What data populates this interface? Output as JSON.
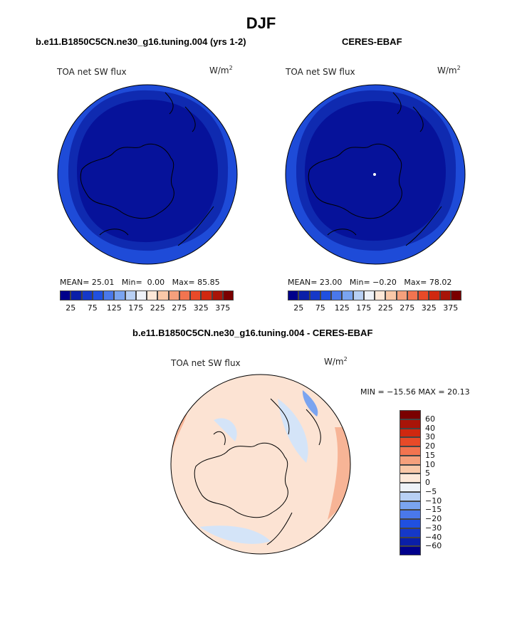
{
  "page": {
    "title": "DJF"
  },
  "panels": [
    {
      "id": "model",
      "header": "b.e11.B1850C5CN.ne30_g16.tuning.004 (yrs 1-2)",
      "variable": "TOA net SW flux",
      "units": "W/m",
      "units_sup": "2",
      "stats": {
        "mean_label": "MEAN=",
        "mean": "25.01",
        "min_label": "Min=",
        "min": "0.00",
        "max_label": "Max=",
        "max": "85.85"
      }
    },
    {
      "id": "obs",
      "header": "CERES-EBAF",
      "variable": "TOA net SW flux",
      "units": "W/m",
      "units_sup": "2",
      "stats": {
        "mean_label": "MEAN=",
        "mean": "23.00",
        "min_label": "Min=",
        "min": "−0.20",
        "max_label": "Max=",
        "max": "78.02"
      }
    },
    {
      "id": "diff",
      "header": "b.e11.B1850C5CN.ne30_g16.tuning.004 - CERES-EBAF",
      "variable": "TOA net SW flux",
      "units": "W/m",
      "units_sup": "2",
      "stats": {
        "text": "MIN = −15.56 MAX =  20.13"
      }
    }
  ],
  "colorbars": {
    "absolute": {
      "colors": [
        "#00008b",
        "#0a1fa8",
        "#1538c8",
        "#2050e0",
        "#4a78ea",
        "#7aa4f0",
        "#b8d0f4",
        "#eef2f8",
        "#fde8d8",
        "#f9c8a8",
        "#f5a07c",
        "#f27450",
        "#e84a28",
        "#d02810",
        "#a81408",
        "#7a0000"
      ],
      "labels": [
        "25",
        "75",
        "125",
        "175",
        "225",
        "275",
        "325",
        "375"
      ]
    },
    "difference": {
      "colors": [
        "#00008b",
        "#0a1fa8",
        "#1538c8",
        "#2050e0",
        "#4a78ea",
        "#7aa4f0",
        "#b8d0f4",
        "#eef2f8",
        "#fde8d8",
        "#f9c8a8",
        "#f5a07c",
        "#f27450",
        "#e84a28",
        "#d02810",
        "#a81408",
        "#7a0000"
      ],
      "labels": [
        "60",
        "40",
        "30",
        "20",
        "15",
        "10",
        "5",
        "0",
        "−5",
        "−10",
        "−15",
        "−20",
        "−30",
        "−40",
        "−60"
      ]
    }
  },
  "map_fills": {
    "abs_outer": "#1e4bd8",
    "abs_mid": "#0f2ab0",
    "abs_inner": "#06129a",
    "diff_base": "#fce3d3",
    "diff_warm": "#f5a07c",
    "diff_cool": "#d4e4f8",
    "diff_blue": "#7aa4f0"
  }
}
